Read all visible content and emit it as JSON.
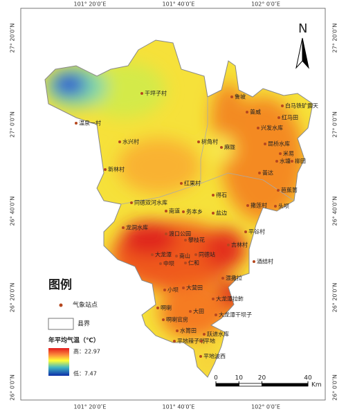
{
  "frame": {
    "top_labels": [
      "101° 20′0″E",
      "101° 40′0″E",
      "102° 0′0″E"
    ],
    "bottom_labels": [
      "101° 20′0″E",
      "101° 40′0″E",
      "102° 0′0″E"
    ],
    "left_labels": [
      "27° 20′0″N",
      "27° 0′0″N",
      "26° 40′0″N",
      "26° 20′0″N",
      "26° 0′0″N"
    ],
    "right_labels": [
      "27° 20′0″N",
      "27° 0′0″N",
      "26° 40′0″N",
      "26° 20′0″N",
      "26° 0′0″N"
    ]
  },
  "north": "N",
  "stations": [
    "干坪子村",
    "温泉一村",
    "水兴村",
    "新林村",
    "鲁坡",
    "普威",
    "白马铁矿露天",
    "红马田",
    "兴发水库",
    "树角村",
    "麻陇",
    "昆桥水库",
    "米易",
    "水塘",
    "柳田",
    "普达",
    "红果村",
    "得石",
    "芭蕉箐",
    "同德双河水库",
    "南道",
    "务本乡",
    "盐边",
    "撒莲村",
    "头坝",
    "龙洞水库",
    "渡口公园",
    "攀枝花",
    "平谷村",
    "吉林村",
    "大龙潭",
    "南山",
    "同德站",
    "中坝",
    "仁和",
    "酒结村",
    "混撒拉",
    "大营田",
    "小坝",
    "大龙潭拉鲊",
    "啊喇",
    "大田",
    "大龙潭干坝子",
    "啊喇官房",
    "水箐田",
    "跃进水库",
    "平地辣子哨",
    "平地",
    "平地波西"
  ],
  "legend": {
    "title": "图例",
    "station": "气象站点",
    "boundary": "县界",
    "temp_title": "年平均气温（℃）",
    "high": "高：22.97",
    "low": "低：7.47"
  },
  "scale": {
    "ticks": [
      0,
      10,
      20,
      40
    ],
    "unit": "Km"
  }
}
